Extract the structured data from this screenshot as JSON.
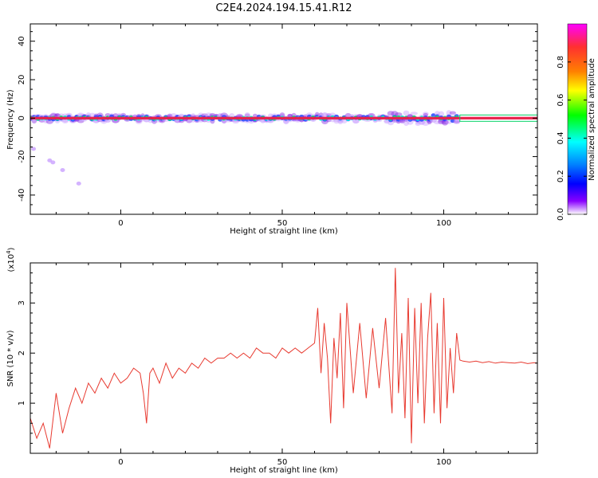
{
  "title": "C2E4.2024.194.15.41.R12",
  "colors": {
    "snr_line": "#e83a30",
    "center_band": "#e8214a",
    "colorbar_stops": [
      "#ff00ff",
      "#ff3030",
      "#ff8000",
      "#ffff00",
      "#00ff00",
      "#00ffff",
      "#0080ff",
      "#0000ff",
      "#8800ff",
      "#ffffff"
    ]
  },
  "chart_data": [
    {
      "type": "heatmap",
      "xlabel": "Height of straight line (km)",
      "ylabel": "Frequency (Hz)",
      "xlim": [
        -28,
        129
      ],
      "ylim": [
        -50,
        49
      ],
      "x_ticks": [
        0,
        50,
        100
      ],
      "y_ticks": [
        40,
        20,
        0,
        -20,
        -40
      ],
      "x_tick_labels": [
        "0",
        "50",
        "100"
      ],
      "y_tick_labels": [
        "40",
        "20",
        "0",
        "-20",
        "-40"
      ],
      "grid": false,
      "colorbar": {
        "label": "Normalized spectral amplitude",
        "range": [
          0,
          1
        ],
        "ticks": [
          0.0,
          0.2,
          0.4,
          0.6,
          0.8
        ],
        "tick_labels": [
          "0.0",
          "0.2",
          "0.4",
          "0.6",
          "0.8"
        ]
      },
      "band": {
        "center_hz": 0,
        "description": "energy concentrated near 0 Hz across all heights"
      },
      "scatter_outliers": [
        {
          "x": -27,
          "y": -16
        },
        {
          "x": -22,
          "y": -22
        },
        {
          "x": -21,
          "y": -23
        },
        {
          "x": -18,
          "y": -27
        },
        {
          "x": -13,
          "y": -34
        }
      ]
    },
    {
      "type": "line",
      "xlabel": "Height of straight line (km)",
      "ylabel": "SNR (10 * v/v)",
      "multiplier": "(x10",
      "multiplier_exp": "4",
      "multiplier_close": ")",
      "xlim": [
        -28,
        129
      ],
      "ylim": [
        0,
        3.8
      ],
      "x_ticks": [
        0,
        50,
        100
      ],
      "y_ticks": [
        1,
        2,
        3
      ],
      "x_tick_labels": [
        "0",
        "50",
        "100"
      ],
      "y_tick_labels": [
        "1",
        "2",
        "3"
      ],
      "grid": false,
      "series": [
        {
          "x": [
            -28,
            -26,
            -24,
            -22,
            -20,
            -18,
            -16,
            -14,
            -12,
            -10,
            -8,
            -6,
            -4,
            -2,
            0,
            2,
            4,
            6,
            7,
            8,
            9,
            10,
            12,
            14,
            16,
            18,
            20,
            22,
            24,
            26,
            28,
            30,
            32,
            34,
            36,
            38,
            40,
            42,
            44,
            46,
            48,
            50,
            52,
            54,
            56,
            58,
            60,
            61,
            62,
            63,
            64,
            65,
            66,
            67,
            68,
            69,
            70,
            72,
            74,
            76,
            78,
            80,
            82,
            84,
            85,
            86,
            87,
            88,
            89,
            90,
            91,
            92,
            93,
            94,
            95,
            96,
            97,
            98,
            99,
            100,
            101,
            102,
            103,
            104,
            105,
            106,
            108,
            110,
            112,
            114,
            116,
            118,
            120,
            122,
            124,
            126,
            128,
            129
          ],
          "values": [
            0.7,
            0.3,
            0.6,
            0.1,
            1.2,
            0.4,
            0.9,
            1.3,
            1.0,
            1.4,
            1.2,
            1.5,
            1.3,
            1.6,
            1.4,
            1.5,
            1.7,
            1.6,
            1.2,
            0.6,
            1.6,
            1.7,
            1.4,
            1.8,
            1.5,
            1.7,
            1.6,
            1.8,
            1.7,
            1.9,
            1.8,
            1.9,
            1.9,
            2.0,
            1.9,
            2.0,
            1.9,
            2.1,
            2.0,
            2.0,
            1.9,
            2.1,
            2.0,
            2.1,
            2.0,
            2.1,
            2.2,
            2.9,
            1.6,
            2.6,
            1.9,
            0.6,
            2.3,
            1.5,
            2.8,
            0.9,
            3.0,
            1.2,
            2.6,
            1.1,
            2.5,
            1.3,
            2.7,
            0.8,
            3.7,
            1.2,
            2.4,
            0.7,
            3.1,
            0.2,
            2.9,
            1.0,
            3.0,
            0.6,
            2.3,
            3.2,
            0.8,
            2.6,
            0.6,
            3.1,
            0.9,
            2.1,
            1.2,
            2.4,
            1.86,
            1.84,
            1.82,
            1.84,
            1.81,
            1.83,
            1.8,
            1.82,
            1.81,
            1.8,
            1.82,
            1.79,
            1.81,
            1.8
          ]
        }
      ]
    }
  ]
}
